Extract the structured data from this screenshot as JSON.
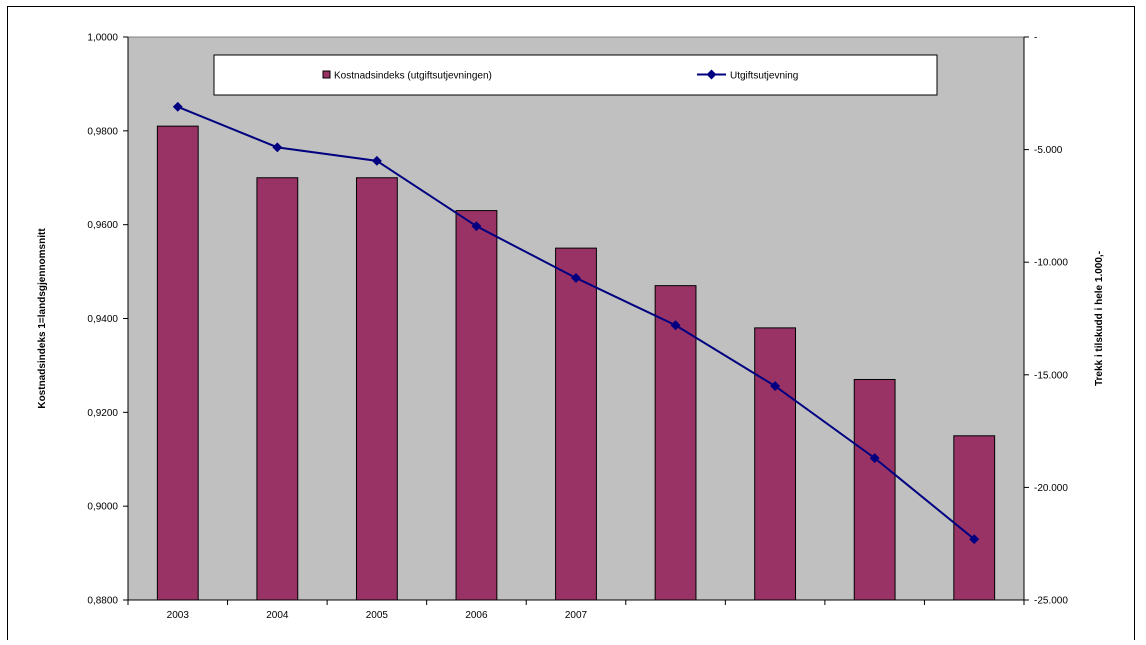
{
  "chart_data": {
    "type": "bar",
    "categories": [
      "2003",
      "2004",
      "2005",
      "2006",
      "2007",
      "",
      "",
      "",
      ""
    ],
    "series": [
      {
        "name": "Kostnadsindeks (utgiftsutjevningen)",
        "kind": "bar",
        "axis": "left",
        "color": "#993366",
        "values": [
          0.981,
          0.97,
          0.97,
          0.963,
          0.955,
          0.947,
          0.938,
          0.927,
          0.915
        ]
      },
      {
        "name": "Utgiftsutjevning",
        "kind": "line",
        "axis": "right",
        "color": "#000080",
        "values": [
          -3100,
          -4900,
          -5500,
          -8400,
          -10700,
          -12800,
          -15500,
          -18700,
          -22300
        ]
      }
    ],
    "left_axis": {
      "label": "Kostnadsindeks 1=landsgjennomsnitt",
      "ylim": [
        0.88,
        1.0
      ],
      "ticks": [
        0.88,
        0.9,
        0.92,
        0.94,
        0.96,
        0.98,
        1.0
      ],
      "tick_labels": [
        "0,8800",
        "0,9000",
        "0,9200",
        "0,9400",
        "0,9600",
        "0,9800",
        "1,0000"
      ]
    },
    "right_axis": {
      "label": "Trekk i tilskudd i hele 1.000,-",
      "ylim": [
        -25000,
        0
      ],
      "ticks": [
        0,
        -5000,
        -10000,
        -15000,
        -20000,
        -25000
      ],
      "tick_labels": [
        "-",
        "-5.000",
        "-10.000",
        "-15.000",
        "-20.000",
        "-25.000"
      ]
    },
    "plot_background": "#c0c0c0",
    "legend_position": "top",
    "grid": false
  }
}
